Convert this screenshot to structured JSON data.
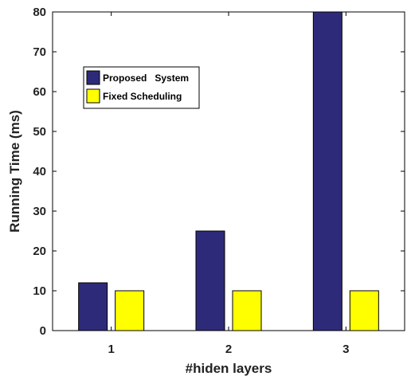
{
  "chart_data": {
    "type": "bar",
    "title": "",
    "xlabel": "#hiden layers",
    "ylabel": "Running Time (ms)",
    "categories": [
      "1",
      "2",
      "3"
    ],
    "series": [
      {
        "name": "Proposed   System",
        "values": [
          12,
          25,
          80
        ],
        "color": "#2e2a7a"
      },
      {
        "name": "Fixed Scheduling",
        "values": [
          10,
          10,
          10
        ],
        "color": "#ffff00"
      }
    ],
    "ylim": [
      0,
      80
    ],
    "yticks": [
      0,
      10,
      20,
      30,
      40,
      50,
      60,
      70,
      80
    ],
    "grid": false,
    "legend_position": "upper-left"
  }
}
